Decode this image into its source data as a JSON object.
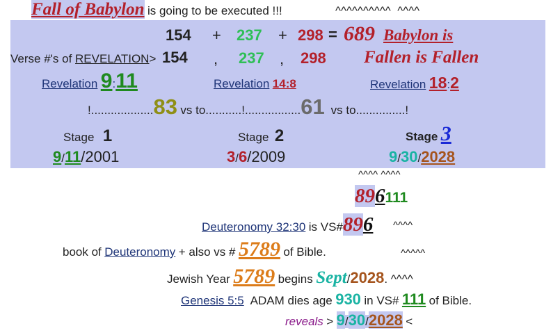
{
  "title": {
    "main": "Fall of Babylon",
    "rest": "is going to be executed !!!",
    "carets1": "^^^^^^^^^^",
    "carets2": "^^^^"
  },
  "sum": {
    "a": "154",
    "plus1": "+",
    "b": "237",
    "plus2": "+",
    "c": "298",
    "eq": "=",
    "total": "689",
    "babylon": "Babylon is"
  },
  "verses": {
    "label": "Verse #'s of",
    "book": "REVELATION",
    "arrow": ">",
    "a": "154",
    "comma1": ",",
    "b": "237",
    "comma2": ",",
    "c": "298",
    "fallen": "Fallen is Fallen"
  },
  "refs": {
    "r1_word": "Revelation",
    "r1_ch": "9",
    "r1_colon": ":",
    "r1_v": "11",
    "r2_word": "Revelation",
    "r2_ref": "14:8",
    "r3_word": "Revelation",
    "r3_ch": "18",
    "r3_colon": ":",
    "r3_v": "2"
  },
  "counts": {
    "bang": "!...................",
    "n1": "83",
    "vs1": "vs to...........!.................",
    "n2": "61",
    "vs2": "vs to...............!"
  },
  "stages": {
    "s1_label": "Stage",
    "s1_num": "1",
    "s2_label": "Stage",
    "s2_num": "2",
    "s3_label": "Stage",
    "s3_num": "3"
  },
  "dates": {
    "d1_m": "9",
    "d1_s": "/",
    "d1_d": "11",
    "d1_y": "/2001",
    "d2_m": "3",
    "d2_s": "/",
    "d2_d": "6",
    "d2_y": "/2009",
    "d3_m": "9",
    "d3_s": "/",
    "d3_d": "30",
    "d3_s2": "/",
    "d3_y": "2028"
  },
  "carets": {
    "c3": "^^^^ ^^^^",
    "c4": "^^^^",
    "c5": "^^^^^"
  },
  "num896": {
    "a": "89",
    "b": "6",
    "c": "111"
  },
  "deut": {
    "ref": "Deuteronomy 32:30",
    "text": "is VS#",
    "a": "89",
    "b": "6"
  },
  "book": {
    "pre": "book of",
    "name": "Deuteronomy",
    "mid": "+ also vs #",
    "num": "5789",
    "post": "of Bible."
  },
  "jewish": {
    "pre": "Jewish Year",
    "num": "5789",
    "begins": "begins",
    "sept": "Sept",
    "slash": "/",
    "year": "2028",
    "dot": ". ^^^^"
  },
  "genesis": {
    "ref": "Genesis 5:5",
    "text": "ADAM dies age",
    "age": "930",
    "in": "in VS#",
    "vs": "111",
    "post": "of Bible."
  },
  "reveals": {
    "word": "reveals",
    "gt": ">",
    "m": "9",
    "s": "/",
    "d": "30",
    "s2": "/",
    "y": "2028",
    "lt": "<"
  }
}
